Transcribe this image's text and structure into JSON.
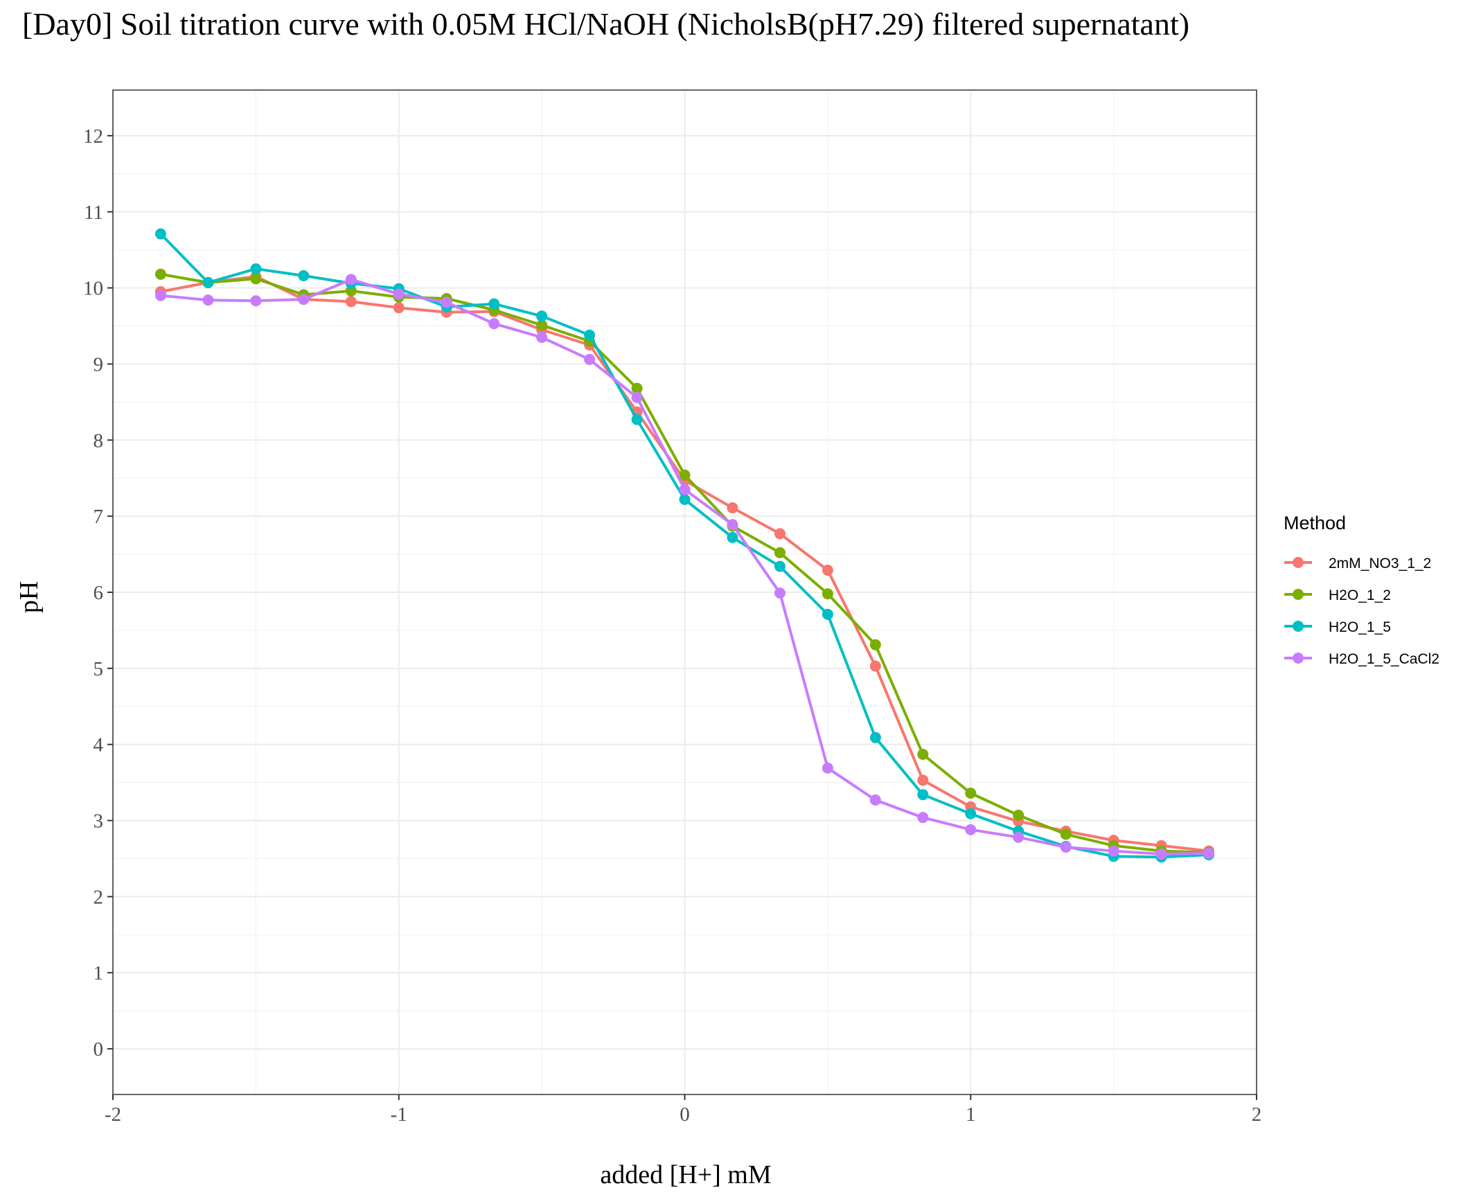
{
  "chart_data": {
    "type": "line",
    "title": "[Day0] Soil titration curve with 0.05M HCl/NaOH (NicholsB(pH7.29) filtered supernatant)",
    "xlabel": "added [H+] mM",
    "ylabel": "pH",
    "xlim": [
      -2,
      2
    ],
    "ylim": [
      -0.6,
      12.6
    ],
    "x_ticks": [
      -2,
      -1,
      0,
      1,
      2
    ],
    "x_tick_labels": [
      "-2",
      "-1",
      "0",
      "1",
      "2"
    ],
    "y_ticks": [
      0,
      1,
      2,
      3,
      4,
      5,
      6,
      7,
      8,
      9,
      10,
      11,
      12
    ],
    "y_tick_labels": [
      "0",
      "1",
      "2",
      "3",
      "4",
      "5",
      "6",
      "7",
      "8",
      "9",
      "10",
      "11",
      "12"
    ],
    "grid": true,
    "legend_title": "Method",
    "legend_position": "right",
    "x": [
      -1.833,
      -1.667,
      -1.5,
      -1.333,
      -1.167,
      -1.0,
      -0.833,
      -0.667,
      -0.5,
      -0.333,
      -0.167,
      0.0,
      0.167,
      0.333,
      0.5,
      0.667,
      0.833,
      1.0,
      1.167,
      1.333,
      1.5,
      1.667,
      1.833
    ],
    "series": [
      {
        "name": "2mM_NO3_1_2",
        "color": "#F8766D",
        "values": [
          9.95,
          10.07,
          10.15,
          9.85,
          9.82,
          9.74,
          9.68,
          9.69,
          9.45,
          9.25,
          8.37,
          7.47,
          7.11,
          6.77,
          6.29,
          5.03,
          3.53,
          3.18,
          2.99,
          2.86,
          2.74,
          2.67,
          2.6
        ]
      },
      {
        "name": "H2O_1_2",
        "color": "#7CAE00",
        "values": [
          10.18,
          10.07,
          10.12,
          9.91,
          9.96,
          9.88,
          9.86,
          9.71,
          9.51,
          9.3,
          8.68,
          7.54,
          6.87,
          6.52,
          5.98,
          5.31,
          3.87,
          3.36,
          3.07,
          2.82,
          2.67,
          2.6,
          2.58
        ]
      },
      {
        "name": "H2O_1_5",
        "color": "#00BFC4",
        "values": [
          10.71,
          10.07,
          10.25,
          10.16,
          10.06,
          9.99,
          9.75,
          9.79,
          9.63,
          9.38,
          8.27,
          7.22,
          6.72,
          6.34,
          5.71,
          4.09,
          3.34,
          3.09,
          2.86,
          2.66,
          2.53,
          2.52,
          2.55
        ]
      },
      {
        "name": "H2O_1_5_CaCl2",
        "color": "#C77CFF",
        "values": [
          9.9,
          9.84,
          9.83,
          9.85,
          10.11,
          9.92,
          9.81,
          9.53,
          9.35,
          9.06,
          8.56,
          7.35,
          6.89,
          5.99,
          3.69,
          3.27,
          3.04,
          2.88,
          2.78,
          2.65,
          2.6,
          2.56,
          2.57
        ]
      }
    ]
  }
}
